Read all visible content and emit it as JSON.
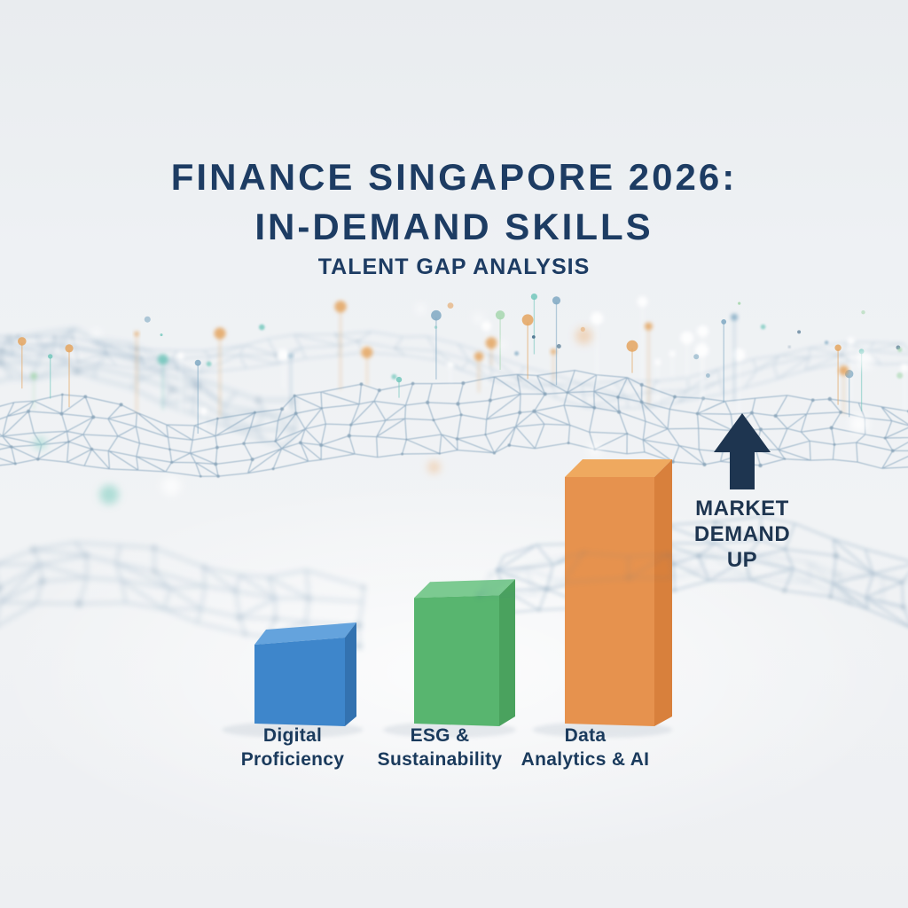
{
  "header": {
    "title_line1": "FINANCE SINGAPORE 2026:",
    "title_line2": "IN-DEMAND SKILLS",
    "subtitle": "TALENT GAP ANALYSIS",
    "title_color": "#1d3c63"
  },
  "annotation": {
    "lines": [
      "MARKET",
      "DEMAND",
      "UP"
    ],
    "icon": "arrow-up-icon",
    "color": "#1e3550"
  },
  "chart_data": {
    "type": "bar",
    "style": "pictorial 3D bars on rendered network-landscape background",
    "title": "FINANCE SINGAPORE 2026: IN-DEMAND SKILLS",
    "subtitle": "TALENT GAP ANALYSIS",
    "categories": [
      "Digital Proficiency",
      "ESG & Sustainability",
      "Data Analytics & AI"
    ],
    "label_lines": [
      [
        "Digital",
        "Proficiency"
      ],
      [
        "ESG &",
        "Sustainability"
      ],
      [
        "Data",
        "Analytics & AI"
      ]
    ],
    "series": [
      {
        "name": "Relative market demand (no numeric labels shown; tallest bar = 100)",
        "values": [
          32,
          51,
          100
        ]
      }
    ],
    "value_labels_shown": false,
    "axes_shown": false,
    "legend": "none",
    "annotation_text": "MARKET DEMAND UP",
    "label_color": "#1a3a5c",
    "bar_colors": [
      {
        "front": "#3e86cb",
        "top": "#64a3dd",
        "side": "#3372b0"
      },
      {
        "front": "#58b56f",
        "top": "#7cca91",
        "side": "#4aa25e"
      },
      {
        "front": "#e6924e",
        "top": "#efa95f",
        "side": "#d8803c"
      }
    ]
  },
  "background": {
    "style": "blurred blue wireframe 3D network landscape with colored pin nodes and bokeh",
    "base_color": "#eef0f3",
    "mesh_line_color": "#46769c",
    "mesh_node_color": "#2b5c82",
    "pin_colors": [
      "#72c7bb",
      "#e4a45f",
      "#a6d7ae",
      "#7fa8c2",
      "#ffffff"
    ]
  }
}
